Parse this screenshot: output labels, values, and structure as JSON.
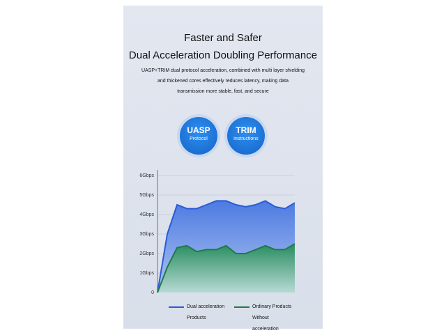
{
  "header": {
    "title": "Faster and Safer",
    "subtitle": "Dual Acceleration Doubling Performance",
    "description": [
      "UASP+TRIM dual protocol acceleration, combined with multi layer shielding",
      "and thickened cores effectively reduces latency, making data",
      "transmission more stable, fast, and secure"
    ]
  },
  "badges": [
    {
      "title": "UASP",
      "text": "Protocol"
    },
    {
      "title": "TRIM",
      "text": "instructions"
    }
  ],
  "chart_data": {
    "type": "area",
    "x": [
      0,
      1,
      2,
      3,
      4,
      5,
      6,
      7,
      8,
      9,
      10,
      11,
      12,
      13,
      14
    ],
    "xlim": [
      0,
      14
    ],
    "series": [
      {
        "name": "Dual acceleration Products",
        "color": "#2a5bd7",
        "values": [
          0,
          3.0,
          4.5,
          4.3,
          4.3,
          4.5,
          4.7,
          4.7,
          4.5,
          4.4,
          4.5,
          4.7,
          4.4,
          4.3,
          4.6
        ]
      },
      {
        "name": "Ordinary Products Without acceleration",
        "color": "#1f7a4a",
        "values": [
          0,
          1.3,
          2.3,
          2.4,
          2.1,
          2.2,
          2.2,
          2.4,
          2.0,
          2.0,
          2.2,
          2.4,
          2.2,
          2.2,
          2.5
        ]
      }
    ],
    "ylim": [
      0,
      6
    ],
    "yticks": [
      0,
      {
        "value": 1,
        "label": "1Gbps"
      },
      {
        "value": 2,
        "label": "2Gbps"
      },
      {
        "value": 3,
        "label": "3Gbps"
      },
      {
        "value": 4,
        "label": "4Gbps"
      },
      {
        "value": 5,
        "label": "5Gbps"
      },
      {
        "value": 6,
        "label": "6Gbps"
      }
    ],
    "grid": true
  }
}
